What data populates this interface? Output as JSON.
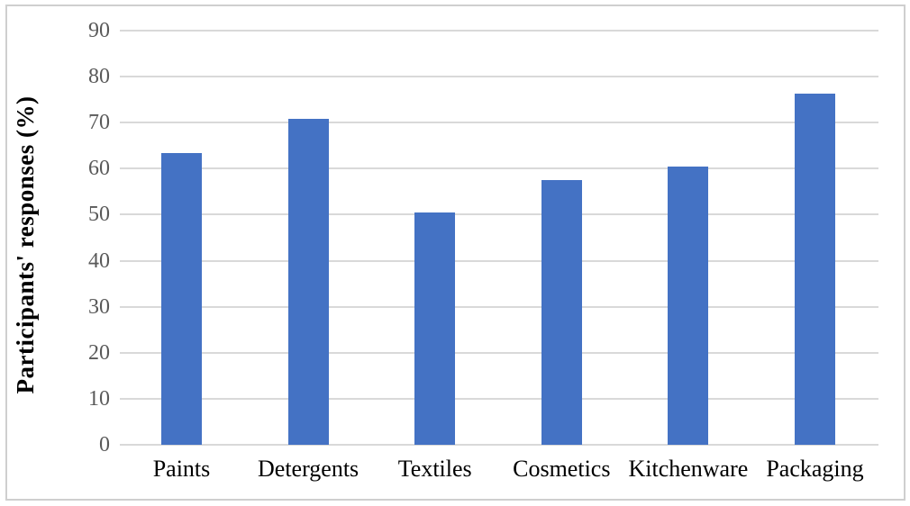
{
  "chart_data": {
    "type": "bar",
    "title": "",
    "xlabel": "",
    "ylabel": "Participants' responses (%)",
    "categories": [
      "Paints",
      "Detergents",
      "Textiles",
      "Cosmetics",
      "Kitchenware",
      "Packaging"
    ],
    "values": [
      63.3,
      70.8,
      50.5,
      57.5,
      60.5,
      76.3
    ],
    "ylim": [
      0,
      90
    ],
    "ytick_step": 10,
    "ytick_labels": [
      "0",
      "10",
      "20",
      "30",
      "40",
      "50",
      "60",
      "70",
      "80",
      "90"
    ],
    "grid": true,
    "legend": "none",
    "bar_color": "#4472C4",
    "gridline_color": "#D9D9D9",
    "ytick_label_color": "#595959",
    "category_label_color": "#000000",
    "frame_border_color": "#CFCFCF"
  }
}
